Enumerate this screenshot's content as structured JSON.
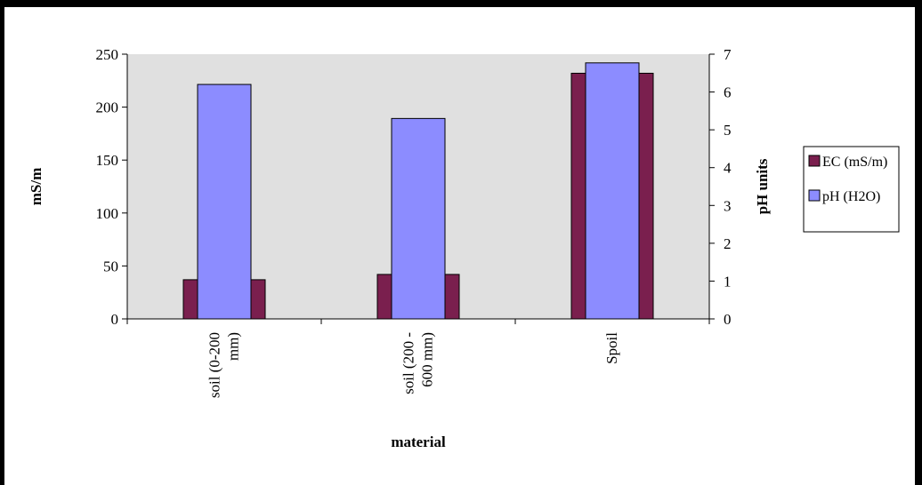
{
  "chart_data": {
    "type": "bar",
    "title": "",
    "xlabel": "material",
    "ylabel": "mS/m",
    "y2label": "pH units",
    "categories": [
      [
        "soil (0-200",
        "mm)"
      ],
      [
        "soil (200 -",
        "600 mm)"
      ],
      [
        "Spoil"
      ]
    ],
    "series": [
      {
        "name": "EC (mS/m)",
        "axis": "left",
        "values": [
          37,
          42,
          232
        ],
        "color": "#7a1f4e"
      },
      {
        "name": "pH (H2O)",
        "axis": "right",
        "values": [
          6.2,
          5.3,
          6.77
        ],
        "color": "#8c8cff"
      }
    ],
    "ylim": [
      0,
      250
    ],
    "y_ticks": [
      "0",
      "50",
      "100",
      "150",
      "200",
      "250"
    ],
    "y2lim": [
      0,
      7
    ],
    "y2_ticks": [
      "0",
      "1",
      "2",
      "3",
      "4",
      "5",
      "6",
      "7"
    ],
    "plot_background": "#e0e0e0",
    "legend": "right"
  }
}
